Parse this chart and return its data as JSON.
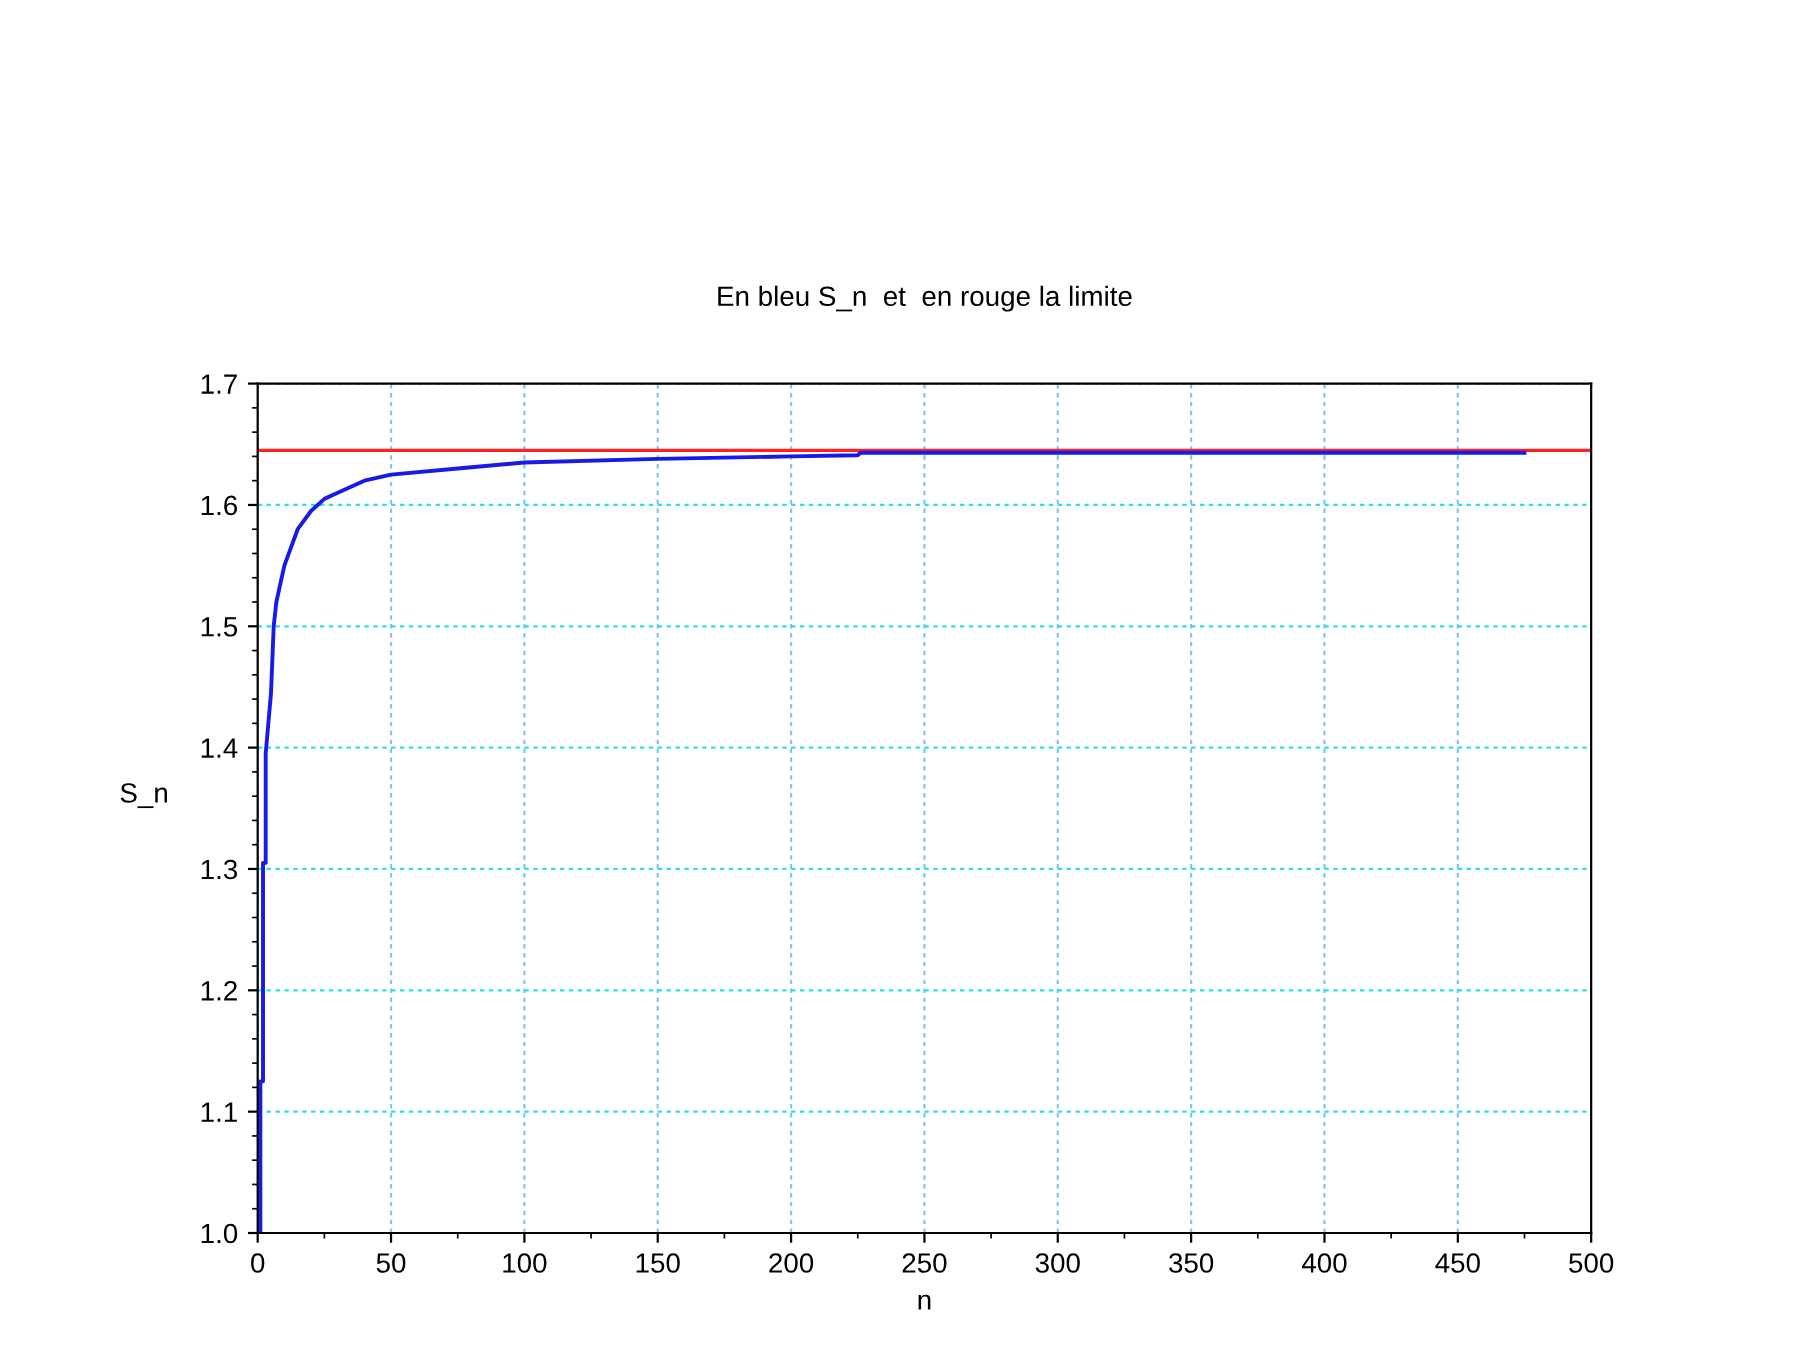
{
  "chart_data": {
    "type": "line",
    "title": "En bleu S_n  et  en rouge la limite",
    "xlabel": "n",
    "ylabel": "S_n",
    "series": [
      {
        "color": "#1a1ae6",
        "x": [
          1,
          1,
          2,
          2,
          3,
          3,
          5,
          6,
          7,
          10,
          15,
          20,
          25,
          30,
          40,
          50,
          75,
          100,
          150,
          200,
          225,
          226,
          300,
          400,
          475
        ],
        "values": [
          1.0,
          1.125,
          1.125,
          1.305,
          1.305,
          1.395,
          1.445,
          1.5,
          1.52,
          1.55,
          1.58,
          1.595,
          1.605,
          1.61,
          1.62,
          1.625,
          1.63,
          1.635,
          1.638,
          1.64,
          1.641,
          1.643,
          1.643,
          1.643,
          1.643
        ]
      }
    ],
    "ref_lines": [
      {
        "axis": "y",
        "value": 1.645,
        "color": "#ff2020"
      }
    ],
    "xlim": [
      0,
      500
    ],
    "xticks": [
      0,
      50,
      100,
      150,
      200,
      250,
      300,
      350,
      400,
      450,
      500
    ],
    "ylim": [
      1.0,
      1.7
    ],
    "yticks": [
      {
        "value": 1,
        "label": "1.0"
      },
      1.1,
      1.2,
      1.3,
      1.4,
      1.5,
      1.6,
      1.7
    ],
    "grid": true,
    "legend": false,
    "marker": "none",
    "line_style": "solid"
  }
}
